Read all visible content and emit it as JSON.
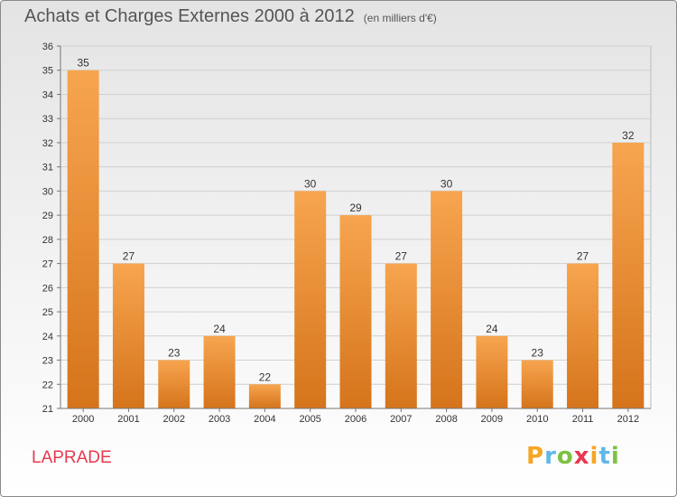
{
  "title": "Achats et Charges Externes 2000 à 2012",
  "subtitle": "(en milliers d'€)",
  "place": "LAPRADE",
  "logo": {
    "letters": [
      "P",
      "r",
      "o",
      "x",
      "i",
      "t",
      "i"
    ],
    "colors": [
      "#f5a623",
      "#5fb8e8",
      "#7dc242",
      "#e8384f",
      "#f5a623",
      "#5fb8e8",
      "#7dc242"
    ]
  },
  "colors": {
    "bar_top": "#f7a54f",
    "bar_bottom": "#d5741b",
    "grid": "#d0d0d0"
  },
  "chart_data": {
    "type": "bar",
    "title": "Achats et Charges Externes 2000 à 2012",
    "subtitle": "(en milliers d'€)",
    "categories": [
      "2000",
      "2001",
      "2002",
      "2003",
      "2004",
      "2005",
      "2006",
      "2007",
      "2008",
      "2009",
      "2010",
      "2011",
      "2012"
    ],
    "values": [
      35,
      27,
      23,
      24,
      22,
      30,
      29,
      27,
      30,
      24,
      23,
      27,
      32
    ],
    "ylim": [
      21,
      36
    ],
    "yticks": [
      21,
      22,
      23,
      24,
      25,
      26,
      27,
      28,
      29,
      30,
      31,
      32,
      33,
      34,
      35,
      36
    ],
    "grid": true,
    "data_labels": true
  }
}
